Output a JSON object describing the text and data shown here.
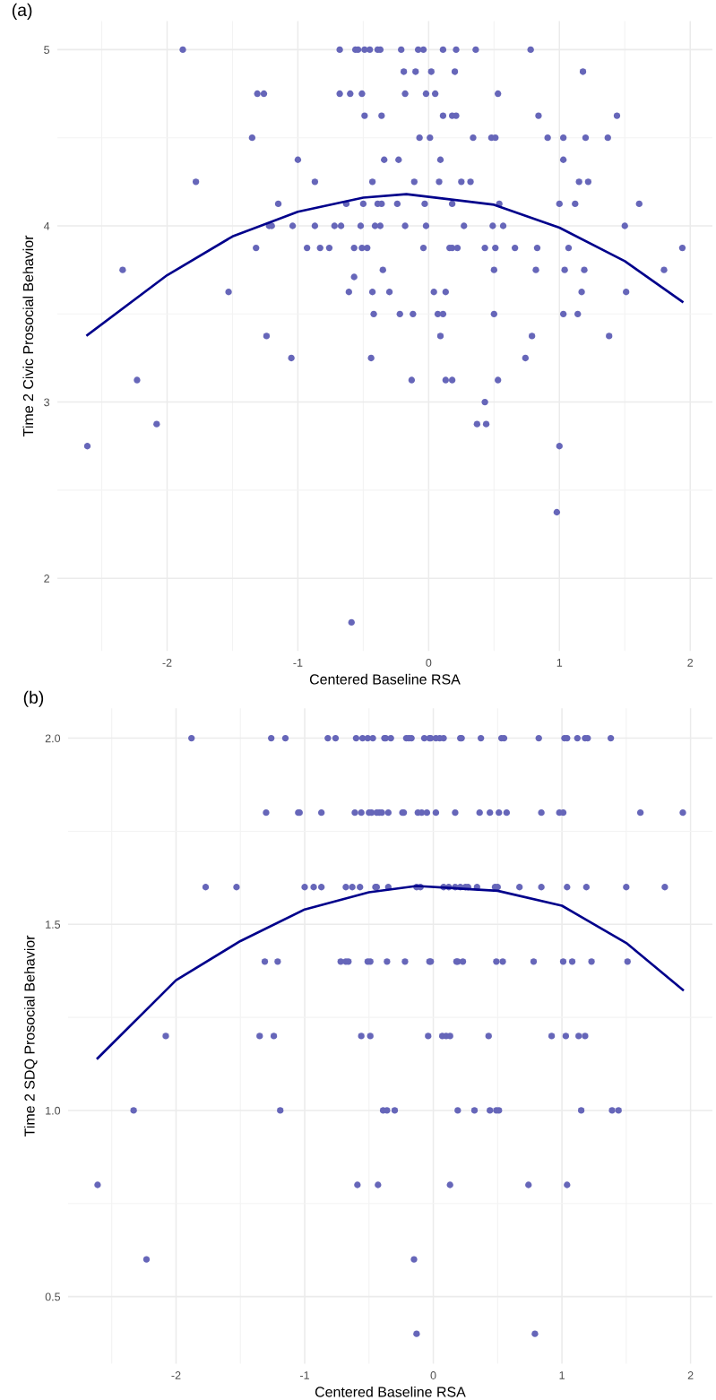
{
  "chart_data": [
    {
      "type": "scatter",
      "title": "(a)",
      "xlabel": "Centered Baseline RSA",
      "ylabel": "Time 2 Civic Prosocial Behavior",
      "xlim": [
        -2.84,
        2.17
      ],
      "ylim": [
        1.5875,
        5.1625
      ],
      "xticks": [
        -2,
        -1,
        0,
        1,
        2
      ],
      "yticks": [
        2,
        3,
        4,
        5
      ],
      "grid": true,
      "series": [
        {
          "color": "#6666b9",
          "marker": "circle",
          "x": [
            -1.88,
            -0.68,
            -0.56,
            -0.54,
            -0.49,
            -0.45,
            -0.39,
            -0.37,
            -0.21,
            -0.08,
            -0.04,
            0.11,
            0.21,
            0.36,
            0.78,
            -0.19,
            -0.1,
            0.02,
            0.2,
            1.18,
            -1.31,
            -1.26,
            -0.68,
            -0.6,
            -0.51,
            -0.18,
            -0.02,
            0.05,
            0.53,
            -0.49,
            -0.36,
            0.11,
            0.18,
            0.21,
            0.84,
            1.44,
            -1.35,
            -0.07,
            0.01,
            0.34,
            0.48,
            0.51,
            0.91,
            1.03,
            1.2,
            1.37,
            -1.0,
            -0.34,
            -0.23,
            0.09,
            1.03,
            -1.78,
            -0.87,
            -0.43,
            -0.11,
            0.08,
            0.25,
            0.32,
            1.15,
            1.22,
            -1.15,
            -0.63,
            -0.5,
            -0.39,
            -0.36,
            -0.24,
            -0.03,
            0.18,
            0.54,
            1.0,
            1.12,
            1.61,
            -1.22,
            -1.2,
            -1.04,
            -0.87,
            -0.72,
            -0.67,
            -0.52,
            -0.41,
            -0.37,
            -0.18,
            -0.02,
            0.27,
            0.49,
            0.57,
            1.5,
            -1.32,
            -0.93,
            -0.83,
            -0.76,
            -0.57,
            -0.51,
            -0.47,
            -0.04,
            0.16,
            0.18,
            0.22,
            0.43,
            0.51,
            0.66,
            0.83,
            1.07,
            1.94,
            -2.34,
            -0.35,
            0.5,
            0.82,
            1.04,
            1.19,
            1.8,
            -0.57,
            -1.53,
            -0.61,
            -0.43,
            -0.3,
            0.04,
            0.13,
            1.17,
            1.51,
            -0.42,
            -0.22,
            -0.12,
            0.07,
            0.11,
            0.5,
            1.03,
            1.14,
            -1.24,
            0.09,
            0.79,
            1.38,
            -1.05,
            -0.44,
            0.74,
            -2.23,
            -0.13,
            0.13,
            0.18,
            0.53,
            0.43,
            -2.08,
            0.37,
            0.44,
            -2.61,
            1.0,
            0.98,
            -0.59
          ],
          "values": [
            5,
            5,
            5,
            5,
            5,
            5,
            5,
            5,
            5,
            5,
            5,
            5,
            5,
            5,
            5,
            4.875,
            4.875,
            4.875,
            4.875,
            4.875,
            4.75,
            4.75,
            4.75,
            4.75,
            4.75,
            4.75,
            4.75,
            4.75,
            4.75,
            4.625,
            4.625,
            4.625,
            4.625,
            4.625,
            4.625,
            4.625,
            4.5,
            4.5,
            4.5,
            4.5,
            4.5,
            4.5,
            4.5,
            4.5,
            4.5,
            4.5,
            4.375,
            4.375,
            4.375,
            4.375,
            4.375,
            4.25,
            4.25,
            4.25,
            4.25,
            4.25,
            4.25,
            4.25,
            4.25,
            4.25,
            4.125,
            4.125,
            4.125,
            4.125,
            4.125,
            4.125,
            4.125,
            4.125,
            4.125,
            4.125,
            4.125,
            4.125,
            4,
            4,
            4,
            4,
            4,
            4,
            4,
            4,
            4,
            4,
            4,
            4,
            4,
            4,
            4,
            3.875,
            3.875,
            3.875,
            3.875,
            3.875,
            3.875,
            3.875,
            3.875,
            3.875,
            3.875,
            3.875,
            3.875,
            3.875,
            3.875,
            3.875,
            3.875,
            3.875,
            3.75,
            3.75,
            3.75,
            3.75,
            3.75,
            3.75,
            3.75,
            3.71,
            3.625,
            3.625,
            3.625,
            3.625,
            3.625,
            3.625,
            3.625,
            3.625,
            3.5,
            3.5,
            3.5,
            3.5,
            3.5,
            3.5,
            3.5,
            3.5,
            3.375,
            3.375,
            3.375,
            3.375,
            3.25,
            3.25,
            3.25,
            3.125,
            3.125,
            3.125,
            3.125,
            3.125,
            3,
            2.875,
            2.875,
            2.875,
            2.75,
            2.75,
            2.375,
            1.75
          ]
        },
        {
          "type": "line",
          "color": "#00008b",
          "x": [
            -2.61,
            -2,
            -1.5,
            -1,
            -0.5,
            -0.17,
            0.5,
            1,
            1.5,
            1.94
          ],
          "values": [
            3.38,
            3.72,
            3.94,
            4.08,
            4.16,
            4.18,
            4.12,
            3.99,
            3.8,
            3.57
          ]
        }
      ]
    },
    {
      "type": "scatter",
      "title": "(b)",
      "xlabel": "Centered Baseline RSA",
      "ylabel": "Time 2 SDQ Prosocial Behavior",
      "xlim": [
        -2.84,
        2.17
      ],
      "ylim": [
        0.32,
        2.08
      ],
      "xticks": [
        -2,
        -1,
        0,
        1,
        2
      ],
      "yticks": [
        {
          "value": 0.5,
          "label": "0.5"
        },
        {
          "value": 1,
          "label": "1.0"
        },
        {
          "value": 1.5,
          "label": "1.5"
        },
        {
          "value": 2,
          "label": "2.0"
        }
      ],
      "grid": true,
      "series": [
        {
          "color": "#6666b9",
          "marker": "circle",
          "x": [
            -1.88,
            -1.26,
            -1.15,
            -0.82,
            -0.76,
            -0.6,
            -0.55,
            -0.51,
            -0.47,
            -0.38,
            -0.37,
            -0.33,
            -0.21,
            -0.19,
            -0.17,
            -0.07,
            -0.03,
            -0.02,
            0.02,
            0.05,
            0.08,
            0.21,
            0.22,
            0.37,
            0.53,
            0.55,
            0.82,
            1.02,
            1.04,
            1.12,
            1.18,
            1.2,
            1.38,
            -1.3,
            -1.05,
            -1.04,
            -0.87,
            -0.61,
            -0.56,
            -0.5,
            -0.48,
            -0.44,
            -0.42,
            -0.4,
            -0.35,
            -0.24,
            -0.23,
            -0.12,
            -0.09,
            -0.05,
            0.02,
            0.17,
            0.36,
            0.44,
            0.51,
            0.57,
            0.84,
            0.98,
            1.01,
            1.61,
            1.94,
            -1.77,
            -1.53,
            -1.0,
            -0.93,
            -0.87,
            -0.68,
            -0.63,
            -0.57,
            -0.45,
            -0.44,
            -0.35,
            -0.13,
            -0.1,
            0.08,
            0.12,
            0.17,
            0.21,
            0.25,
            0.27,
            0.34,
            0.48,
            0.5,
            0.67,
            0.84,
            1.04,
            1.19,
            1.5,
            1.8,
            -1.31,
            -1.21,
            -0.72,
            -0.68,
            -0.66,
            -0.51,
            -0.49,
            -0.36,
            -0.22,
            -0.03,
            -0.02,
            0.18,
            0.19,
            0.23,
            0.49,
            0.54,
            0.78,
            1.01,
            1.08,
            1.23,
            1.51,
            -2.08,
            -1.35,
            -1.24,
            -0.56,
            -0.49,
            -0.04,
            0.07,
            0.1,
            0.13,
            0.43,
            0.92,
            1.03,
            1.13,
            1.18,
            -2.33,
            -1.19,
            -0.39,
            -0.36,
            -0.3,
            0.19,
            0.32,
            0.44,
            0.49,
            0.51,
            1.15,
            1.39,
            1.44,
            -2.61,
            -0.59,
            -0.43,
            0.13,
            0.74,
            1.04,
            -2.23,
            -0.15,
            -0.13,
            0.79
          ],
          "values": [
            2,
            2,
            2,
            2,
            2,
            2,
            2,
            2,
            2,
            2,
            2,
            2,
            2,
            2,
            2,
            2,
            2,
            2,
            2,
            2,
            2,
            2,
            2,
            2,
            2,
            2,
            2,
            2,
            2,
            2,
            2,
            2,
            2,
            1.8,
            1.8,
            1.8,
            1.8,
            1.8,
            1.8,
            1.8,
            1.8,
            1.8,
            1.8,
            1.8,
            1.8,
            1.8,
            1.8,
            1.8,
            1.8,
            1.8,
            1.8,
            1.8,
            1.8,
            1.8,
            1.8,
            1.8,
            1.8,
            1.8,
            1.8,
            1.8,
            1.8,
            1.6,
            1.6,
            1.6,
            1.6,
            1.6,
            1.6,
            1.6,
            1.6,
            1.6,
            1.6,
            1.6,
            1.6,
            1.6,
            1.6,
            1.6,
            1.6,
            1.6,
            1.6,
            1.6,
            1.6,
            1.6,
            1.6,
            1.6,
            1.6,
            1.6,
            1.6,
            1.6,
            1.6,
            1.4,
            1.4,
            1.4,
            1.4,
            1.4,
            1.4,
            1.4,
            1.4,
            1.4,
            1.4,
            1.4,
            1.4,
            1.4,
            1.4,
            1.4,
            1.4,
            1.4,
            1.4,
            1.4,
            1.4,
            1.4,
            1.2,
            1.2,
            1.2,
            1.2,
            1.2,
            1.2,
            1.2,
            1.2,
            1.2,
            1.2,
            1.2,
            1.2,
            1.2,
            1.2,
            1,
            1,
            1,
            1,
            1,
            1,
            1,
            1,
            1,
            1,
            1,
            1,
            1,
            0.8,
            0.8,
            0.8,
            0.8,
            0.8,
            0.8,
            0.6,
            0.6,
            0.4,
            0.4
          ]
        },
        {
          "type": "line",
          "color": "#00008b",
          "x": [
            -2.61,
            -2,
            -1.5,
            -1,
            -0.5,
            -0.13,
            0.5,
            1,
            1.5,
            1.94
          ],
          "values": [
            1.14,
            1.35,
            1.455,
            1.54,
            1.586,
            1.603,
            1.59,
            1.55,
            1.45,
            1.324
          ]
        }
      ]
    }
  ]
}
